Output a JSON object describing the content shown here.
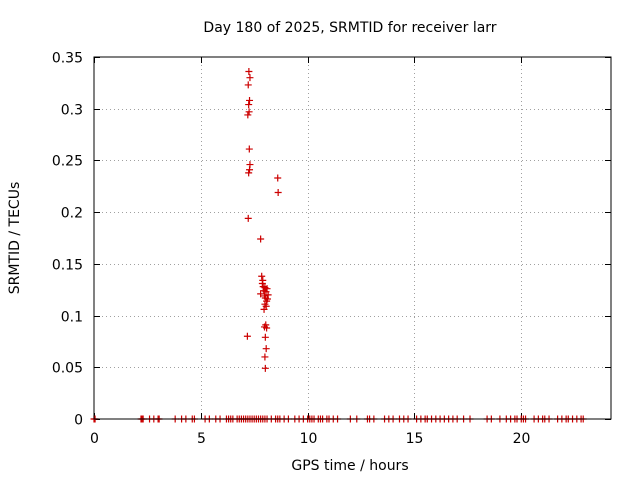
{
  "chart_data": {
    "type": "scatter",
    "title": "Day 180 of 2025, SRMTID for receiver larr",
    "xlabel": "GPS time / hours",
    "ylabel": "SRMTID / TECUs",
    "xlim": [
      0,
      24.2
    ],
    "ylim": [
      0,
      0.35
    ],
    "xticks": [
      0,
      5,
      10,
      15,
      20
    ],
    "xtick_labels": [
      "0",
      "5",
      "10",
      "15",
      "20"
    ],
    "yticks": [
      0,
      0.05,
      0.1,
      0.15,
      0.2,
      0.25,
      0.3,
      0.35
    ],
    "ytick_labels": [
      "0",
      "0.05",
      "0.1",
      "0.15",
      "0.2",
      "0.25",
      "0.3",
      "0.35"
    ],
    "grid": true,
    "marker": "+",
    "series": [
      {
        "name": "SRMTID",
        "color": "#cc0000",
        "points": [
          [
            7.25,
            0.336
          ],
          [
            7.3,
            0.33
          ],
          [
            7.22,
            0.323
          ],
          [
            7.28,
            0.308
          ],
          [
            7.24,
            0.304
          ],
          [
            7.26,
            0.297
          ],
          [
            7.2,
            0.294
          ],
          [
            7.27,
            0.261
          ],
          [
            7.3,
            0.246
          ],
          [
            7.28,
            0.241
          ],
          [
            7.24,
            0.238
          ],
          [
            8.6,
            0.233
          ],
          [
            8.62,
            0.219
          ],
          [
            7.22,
            0.194
          ],
          [
            7.8,
            0.174
          ],
          [
            7.85,
            0.138
          ],
          [
            7.9,
            0.134
          ],
          [
            7.88,
            0.131
          ],
          [
            7.92,
            0.128
          ],
          [
            8.0,
            0.127
          ],
          [
            8.1,
            0.126
          ],
          [
            7.95,
            0.124
          ],
          [
            8.05,
            0.123
          ],
          [
            7.8,
            0.121
          ],
          [
            8.15,
            0.12
          ],
          [
            7.98,
            0.119
          ],
          [
            8.02,
            0.117
          ],
          [
            8.12,
            0.116
          ],
          [
            8.08,
            0.114
          ],
          [
            8.0,
            0.111
          ],
          [
            8.06,
            0.109
          ],
          [
            7.96,
            0.106
          ],
          [
            8.04,
            0.091
          ],
          [
            7.98,
            0.089
          ],
          [
            8.08,
            0.088
          ],
          [
            7.18,
            0.08
          ],
          [
            8.02,
            0.079
          ],
          [
            8.06,
            0.068
          ],
          [
            8.0,
            0.06
          ],
          [
            8.02,
            0.049
          ]
        ]
      }
    ],
    "zero_points_x": [
      0.0,
      0.05,
      2.2,
      2.25,
      2.3,
      2.6,
      2.8,
      3.0,
      3.05,
      3.8,
      4.1,
      4.3,
      4.6,
      4.7,
      5.2,
      5.4,
      5.7,
      5.9,
      6.2,
      6.3,
      6.4,
      6.5,
      6.7,
      6.8,
      6.9,
      7.0,
      7.1,
      7.2,
      7.3,
      7.4,
      7.5,
      7.6,
      7.7,
      7.8,
      7.9,
      8.0,
      8.1,
      8.3,
      8.5,
      8.6,
      8.7,
      8.9,
      9.1,
      9.4,
      9.6,
      9.8,
      10.0,
      10.1,
      10.2,
      10.3,
      10.5,
      10.6,
      10.7,
      10.9,
      11.0,
      11.2,
      11.4,
      12.0,
      12.3,
      12.8,
      12.9,
      13.1,
      13.6,
      13.8,
      14.0,
      14.3,
      14.5,
      14.7,
      15.1,
      15.3,
      15.5,
      15.6,
      15.8,
      16.0,
      16.2,
      16.4,
      16.6,
      16.8,
      17.0,
      17.3,
      17.6,
      18.4,
      18.6,
      19.0,
      19.3,
      19.5,
      19.7,
      19.8,
      20.0,
      20.1,
      20.2,
      20.6,
      20.8,
      21.0,
      21.1,
      21.3,
      21.7,
      21.9,
      22.1,
      22.2,
      22.4,
      22.6,
      22.8,
      22.9
    ]
  }
}
